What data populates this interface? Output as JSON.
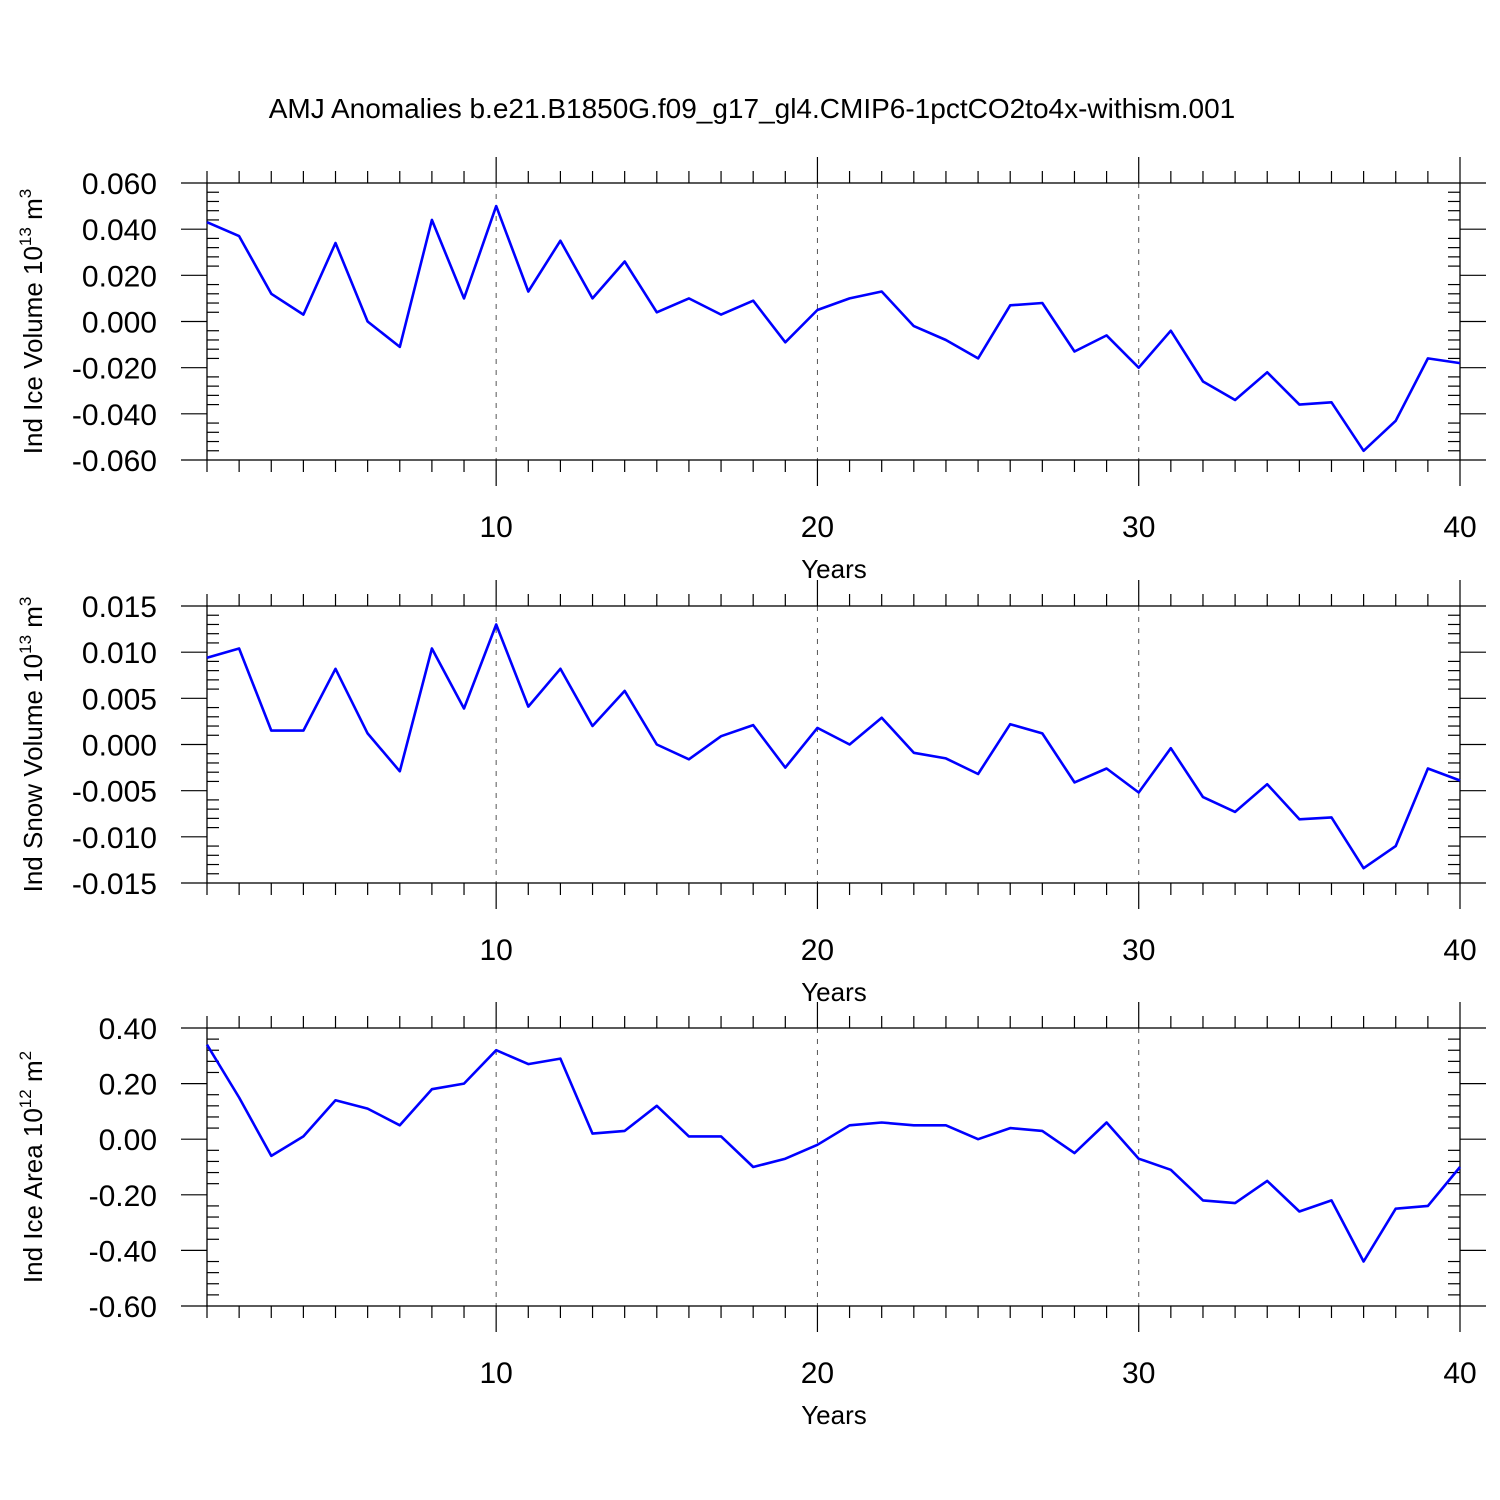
{
  "title": "AMJ Anomalies b.e21.B1850G.f09_g17_gl4.CMIP6-1pctCO2to4x-withism.001",
  "chart_data": [
    {
      "type": "line",
      "ylabel": {
        "text": "Ind Ice Volume 10",
        "exp": "13",
        "unit": "m",
        "unit_exp": "3"
      },
      "xlabel": "Years",
      "xlim": [
        1,
        40
      ],
      "ylim": [
        -0.06,
        0.06
      ],
      "yticks": [
        "0.060",
        "0.040",
        "0.020",
        "0.000",
        "-0.020",
        "-0.040",
        "-0.060"
      ],
      "ytick_values": [
        0.06,
        0.04,
        0.02,
        0.0,
        -0.02,
        -0.04,
        -0.06
      ],
      "xticks": [
        "10",
        "20",
        "30",
        "40"
      ],
      "xtick_values": [
        10,
        20,
        30,
        40
      ],
      "x": [
        1,
        2,
        3,
        4,
        5,
        6,
        7,
        8,
        9,
        10,
        11,
        12,
        13,
        14,
        15,
        16,
        17,
        18,
        19,
        20,
        21,
        22,
        23,
        24,
        25,
        26,
        27,
        28,
        29,
        30,
        31,
        32,
        33,
        34,
        35,
        36,
        37,
        38,
        39,
        40
      ],
      "values": [
        0.043,
        0.037,
        0.012,
        0.003,
        0.034,
        0.0,
        -0.011,
        0.044,
        0.01,
        0.05,
        0.013,
        0.035,
        0.01,
        0.026,
        0.004,
        0.01,
        0.003,
        0.009,
        -0.009,
        0.005,
        0.01,
        0.013,
        -0.002,
        -0.008,
        -0.016,
        0.007,
        0.008,
        -0.013,
        -0.006,
        -0.02,
        -0.004,
        -0.026,
        -0.034,
        -0.022,
        -0.036,
        -0.035,
        -0.056,
        -0.043,
        -0.016,
        -0.018
      ]
    },
    {
      "type": "line",
      "ylabel": {
        "text": "Ind Snow Volume 10",
        "exp": "13",
        "unit": "m",
        "unit_exp": "3"
      },
      "xlabel": "Years",
      "xlim": [
        1,
        40
      ],
      "ylim": [
        -0.015,
        0.015
      ],
      "yticks": [
        "0.015",
        "0.010",
        "0.005",
        "0.000",
        "-0.005",
        "-0.010",
        "-0.015"
      ],
      "ytick_values": [
        0.015,
        0.01,
        0.005,
        0.0,
        -0.005,
        -0.01,
        -0.015
      ],
      "xticks": [
        "10",
        "20",
        "30",
        "40"
      ],
      "xtick_values": [
        10,
        20,
        30,
        40
      ],
      "x": [
        1,
        2,
        3,
        4,
        5,
        6,
        7,
        8,
        9,
        10,
        11,
        12,
        13,
        14,
        15,
        16,
        17,
        18,
        19,
        20,
        21,
        22,
        23,
        24,
        25,
        26,
        27,
        28,
        29,
        30,
        31,
        32,
        33,
        34,
        35,
        36,
        37,
        38,
        39,
        40
      ],
      "values": [
        0.0094,
        0.0104,
        0.0015,
        0.0015,
        0.0082,
        0.0012,
        -0.0029,
        0.0104,
        0.0039,
        0.013,
        0.0041,
        0.0082,
        0.002,
        0.0058,
        0.0,
        -0.0016,
        0.0009,
        0.0021,
        -0.0025,
        0.0018,
        0.0,
        0.0029,
        -0.0009,
        -0.0015,
        -0.0032,
        0.0022,
        0.0012,
        -0.0041,
        -0.0026,
        -0.0052,
        -0.0004,
        -0.0057,
        -0.0073,
        -0.0043,
        -0.0081,
        -0.0079,
        -0.0134,
        -0.011,
        -0.0026,
        -0.0039
      ]
    },
    {
      "type": "line",
      "ylabel": {
        "text": "Ind Ice Area 10",
        "exp": "12",
        "unit": "m",
        "unit_exp": "2"
      },
      "xlabel": "Years",
      "xlim": [
        1,
        40
      ],
      "ylim": [
        -0.6,
        0.4
      ],
      "yticks": [
        "0.40",
        "0.20",
        "0.00",
        "-0.20",
        "-0.40",
        "-0.60"
      ],
      "ytick_values": [
        0.4,
        0.2,
        0.0,
        -0.2,
        -0.4,
        -0.6
      ],
      "xticks": [
        "10",
        "20",
        "30",
        "40"
      ],
      "xtick_values": [
        10,
        20,
        30,
        40
      ],
      "x": [
        1,
        2,
        3,
        4,
        5,
        6,
        7,
        8,
        9,
        10,
        11,
        12,
        13,
        14,
        15,
        16,
        17,
        18,
        19,
        20,
        21,
        22,
        23,
        24,
        25,
        26,
        27,
        28,
        29,
        30,
        31,
        32,
        33,
        34,
        35,
        36,
        37,
        38,
        39,
        40
      ],
      "values": [
        0.34,
        0.15,
        -0.06,
        0.01,
        0.14,
        0.11,
        0.05,
        0.18,
        0.2,
        0.32,
        0.27,
        0.29,
        0.02,
        0.03,
        0.12,
        0.01,
        0.01,
        -0.1,
        -0.07,
        -0.02,
        0.05,
        0.06,
        0.05,
        0.05,
        0.0,
        0.04,
        0.03,
        -0.05,
        0.06,
        -0.07,
        -0.11,
        -0.22,
        -0.23,
        -0.15,
        -0.26,
        -0.22,
        -0.44,
        -0.25,
        -0.24,
        -0.1
      ]
    }
  ]
}
